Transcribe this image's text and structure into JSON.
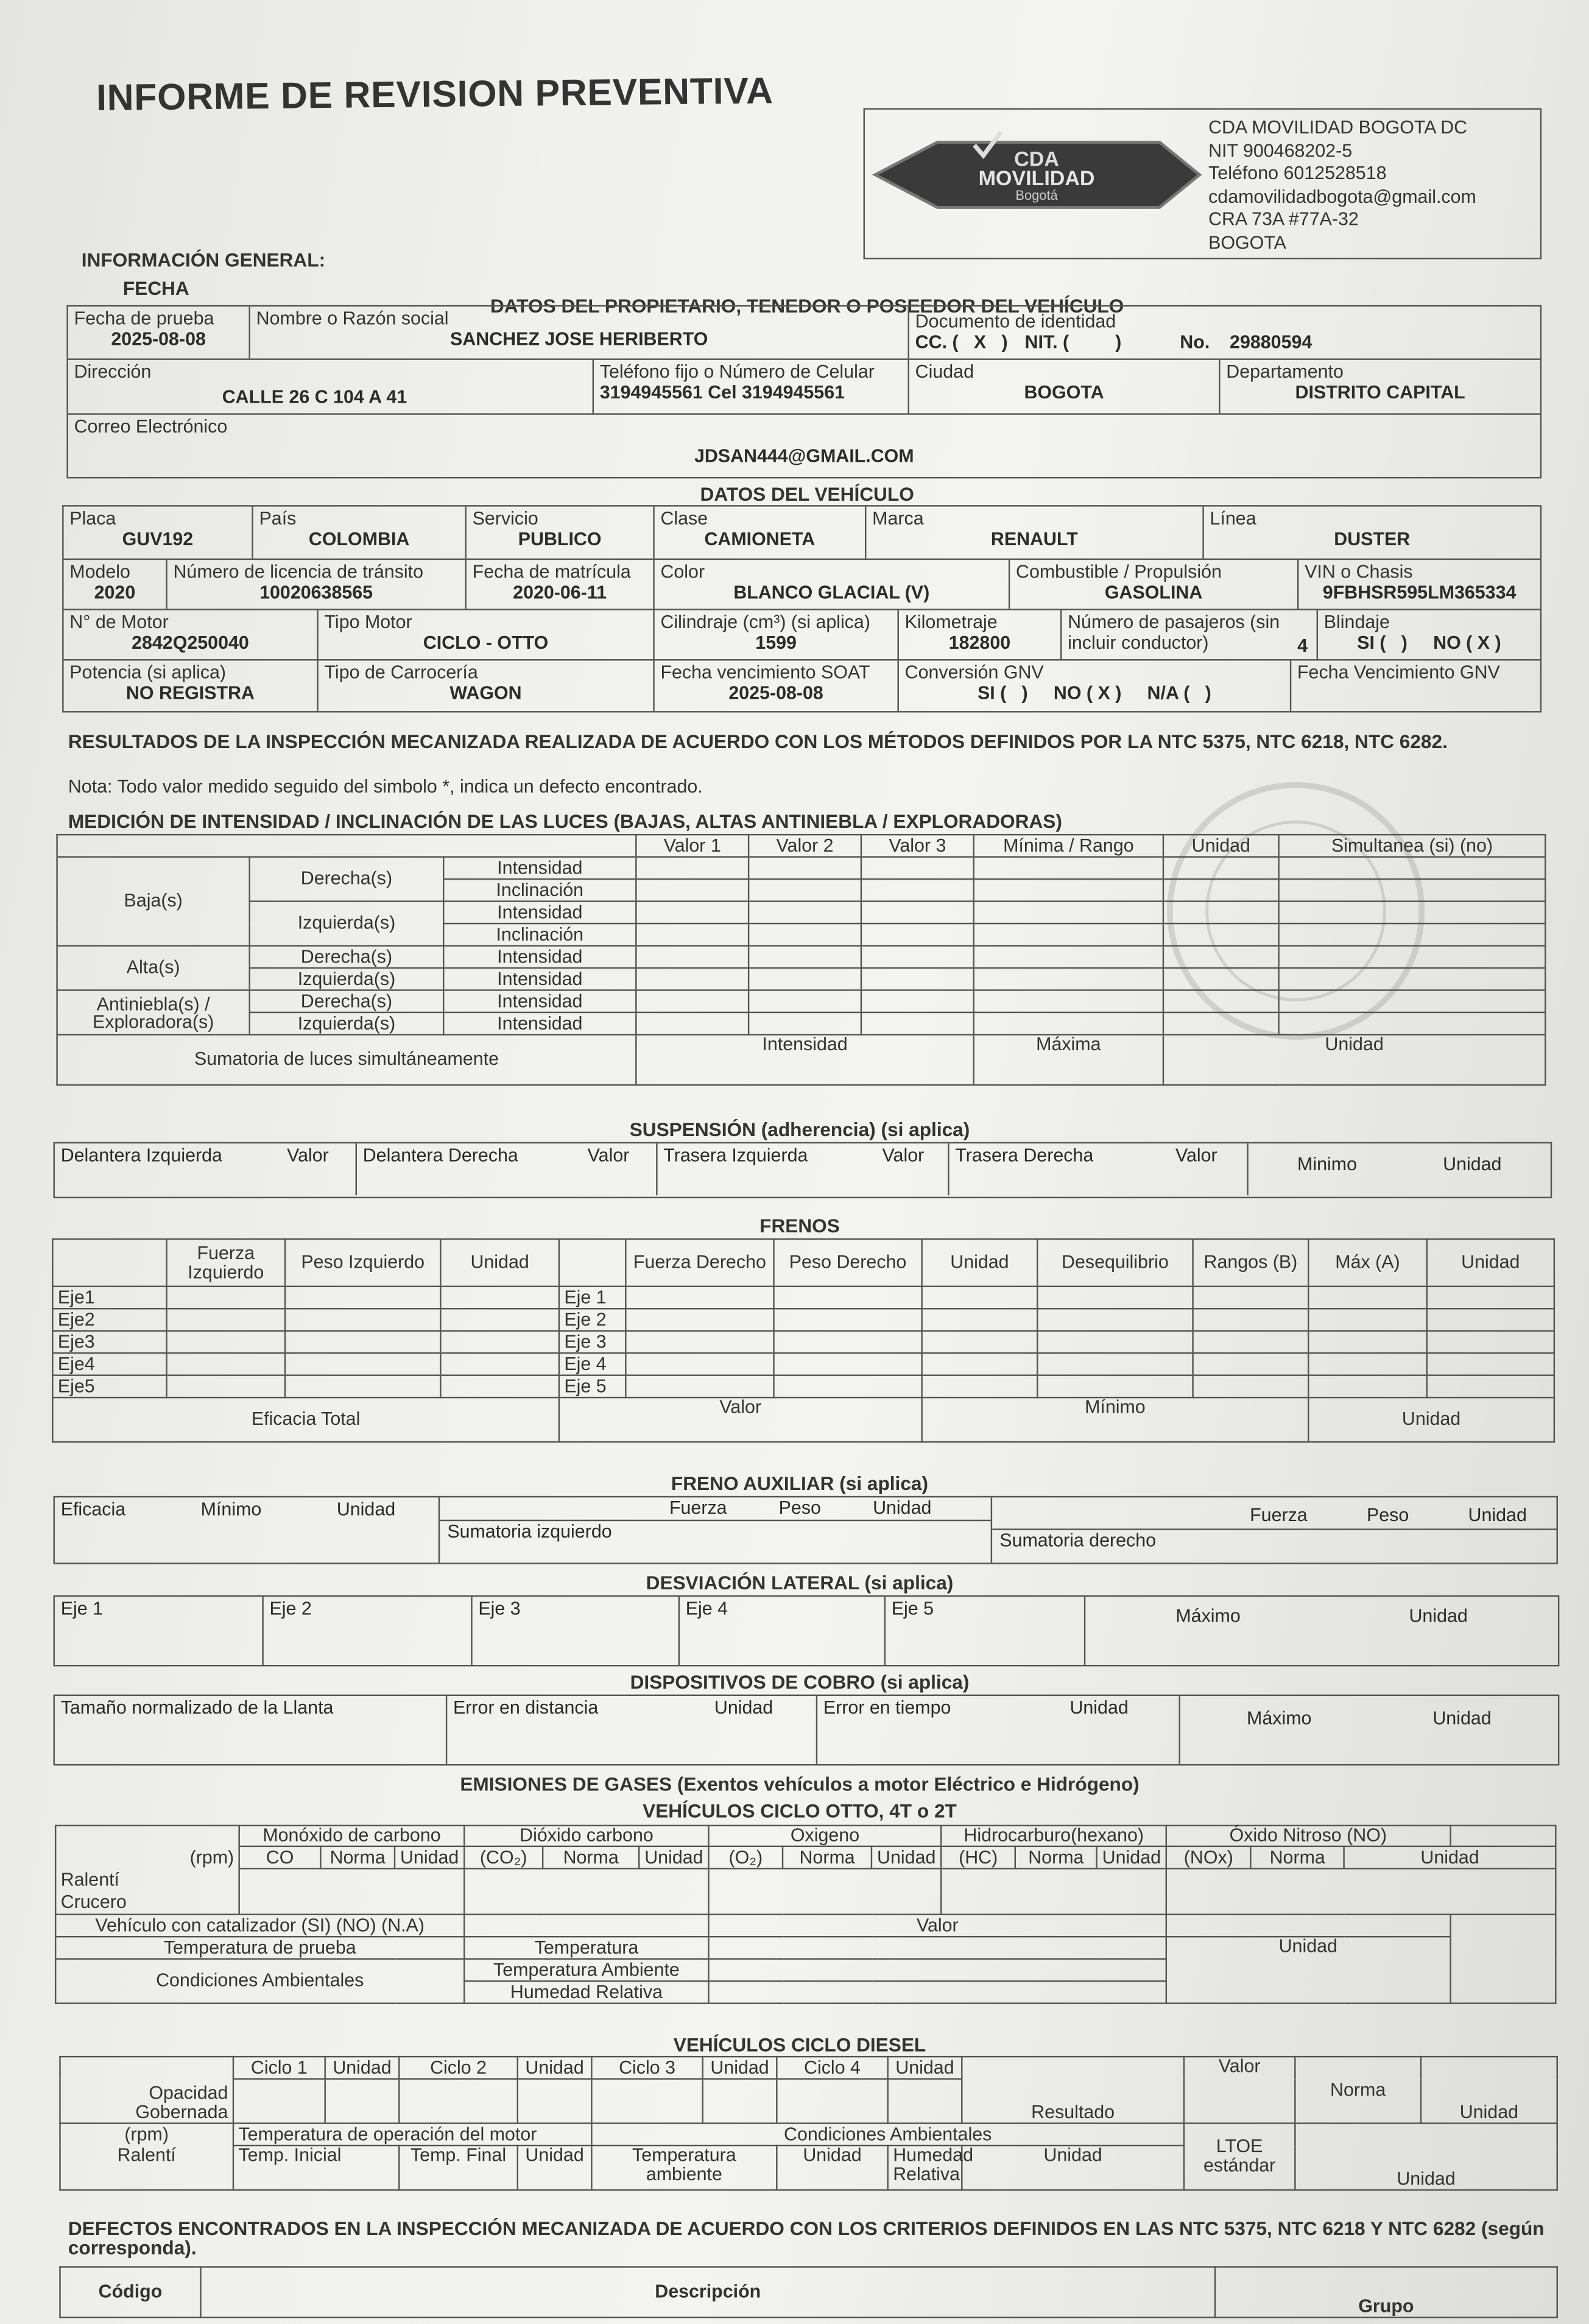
{
  "title": "INFORME DE REVISION PREVENTIVA",
  "company": {
    "logo_text": {
      "top": "CDA",
      "middle": "MOVILIDAD",
      "bottom": "Bogotá"
    },
    "name": "CDA MOVILIDAD BOGOTA DC",
    "nit": "NIT 900468202-5",
    "phone": "Teléfono 6012528518",
    "email": "cdamovilidadbogota@gmail.com",
    "address": "CRA 73A #77A-32",
    "city": "BOGOTA"
  },
  "general": {
    "heading": "INFORMACIÓN GENERAL:",
    "fecha": "FECHA",
    "owner_heading": "DATOS DEL PROPIETARIO, TENEDOR O POSEEDOR DEL VEHÍCULO"
  },
  "owner": {
    "fecha_prueba": {
      "label": "Fecha de prueba",
      "value": "2025-08-08"
    },
    "nombre": {
      "label": "Nombre o Razón social",
      "value": "SANCHEZ JOSE HERIBERTO"
    },
    "documento": {
      "label": "Documento de identidad",
      "cc": "CC. (   X   )",
      "nit": "NIT. (         )",
      "no_label": "No.",
      "no": "29880594"
    },
    "direccion": {
      "label": "Dirección",
      "value": "CALLE 26 C 104 A 41"
    },
    "telefono": {
      "label": "Teléfono fijo o Número de Celular",
      "value": "3194945561  Cel  3194945561"
    },
    "ciudad": {
      "label": "Ciudad",
      "value": "BOGOTA"
    },
    "departamento": {
      "label": "Departamento",
      "value": "DISTRITO CAPITAL"
    },
    "correo": {
      "label": "Correo Electrónico",
      "value": "JDSAN444@GMAIL.COM"
    }
  },
  "vehicle": {
    "heading": "DATOS DEL VEHÍCULO",
    "placa": {
      "label": "Placa",
      "value": "GUV192"
    },
    "pais": {
      "label": "País",
      "value": "COLOMBIA"
    },
    "servicio": {
      "label": "Servicio",
      "value": "PUBLICO"
    },
    "clase": {
      "label": "Clase",
      "value": "CAMIONETA"
    },
    "marca": {
      "label": "Marca",
      "value": "RENAULT"
    },
    "linea": {
      "label": "Línea",
      "value": "DUSTER"
    },
    "modelo": {
      "label": "Modelo",
      "value": "2020"
    },
    "licencia": {
      "label": "Número de licencia de tránsito",
      "value": "10020638565"
    },
    "matricula": {
      "label": "Fecha de matrícula",
      "value": "2020-06-11"
    },
    "color": {
      "label": "Color",
      "value": "BLANCO GLACIAL (V)"
    },
    "combustible": {
      "label": "Combustible / Propulsión",
      "value": "GASOLINA"
    },
    "vin": {
      "label": "VIN o Chasis",
      "value": "9FBHSR595LM365334"
    },
    "motor": {
      "label": "N° de Motor",
      "value": "2842Q250040"
    },
    "tipo_motor": {
      "label": "Tipo Motor",
      "value": "CICLO - OTTO"
    },
    "cilindraje": {
      "label": "Cilindraje (cm³) (si aplica)",
      "value": "1599"
    },
    "kilometraje": {
      "label": "Kilometraje",
      "value": "182800"
    },
    "pasajeros": {
      "label": "Número de pasajeros (sin incluir conductor)",
      "value": "4"
    },
    "blindaje": {
      "label": "Blindaje",
      "value": "SI (   )     NO ( X )"
    },
    "potencia": {
      "label": "Potencia (si aplica)",
      "value": "NO REGISTRA"
    },
    "carroceria": {
      "label": "Tipo de Carrocería",
      "value": "WAGON"
    },
    "soat": {
      "label": "Fecha vencimiento SOAT",
      "value": "2025-08-08"
    },
    "gnv": {
      "label": "Conversión GNV",
      "value": "SI (   )     NO ( X )     N/A (   )"
    },
    "gnv_venc": {
      "label": "Fecha Vencimiento GNV",
      "value": ""
    }
  },
  "results": {
    "heading": "RESULTADOS DE LA INSPECCIÓN MECANIZADA REALIZADA DE ACUERDO CON LOS MÉTODOS DEFINIDOS POR LA NTC 5375, NTC 6218, NTC 6282.",
    "note": "Nota: Todo valor medido seguido del simbolo *, indica un defecto encontrado."
  },
  "lights": {
    "heading": "MEDICIÓN DE INTENSIDAD / INCLINACIÓN DE LAS LUCES (BAJAS, ALTAS ANTINIEBLA / EXPLORADORAS)",
    "columns": [
      "Valor 1",
      "Valor 2",
      "Valor 3",
      "Mínima / Rango",
      "Unidad",
      "Simultanea (si) (no)"
    ],
    "baja": "Baja(s)",
    "alta": "Alta(s)",
    "antiniebla": "Antiniebla(s) / Exploradora(s)",
    "derecha": "Derecha(s)",
    "izquierda": "Izquierda(s)",
    "intensidad": "Intensidad",
    "inclinacion": "Inclinación",
    "sum": "Sumatoria de luces simultáneamente",
    "sum_int": "Intensidad",
    "sum_max": "Máxima",
    "sum_unit": "Unidad"
  },
  "suspension": {
    "heading": "SUSPENSIÓN (adherencia) (si aplica)",
    "cells": [
      "Delantera Izquierda",
      "Valor",
      "Delantera Derecha",
      "Valor",
      "Trasera Izquierda",
      "Valor",
      "Trasera Derecha",
      "Valor",
      "Minimo",
      "Unidad"
    ]
  },
  "brakes": {
    "heading": "FRENOS",
    "left_cols": [
      "Fuerza Izquierdo",
      "Peso Izquierdo",
      "Unidad"
    ],
    "right_cols": [
      "Fuerza Derecho",
      "Peso Derecho",
      "Unidad",
      "Desequilibrio",
      "Rangos (B)",
      "Máx (A)",
      "Unidad"
    ],
    "axles_left": [
      "Eje1",
      "Eje2",
      "Eje3",
      "Eje4",
      "Eje5"
    ],
    "axles_right": [
      "Eje 1",
      "Eje 2",
      "Eje 3",
      "Eje 4",
      "Eje 5"
    ],
    "total": "Eficacia Total",
    "valor": "Valor",
    "minimo": "Mínimo",
    "unidad": "Unidad"
  },
  "aux_brake": {
    "heading": "FRENO AUXILIAR (si aplica)",
    "eficacia": "Eficacia",
    "minimo": "Mínimo",
    "unidad": "Unidad",
    "sum_izq": "Sumatoria izquierdo",
    "sum_der": "Sumatoria derecho",
    "fuerza": "Fuerza",
    "peso": "Peso"
  },
  "lateral": {
    "heading": "DESVIACIÓN LATERAL (si aplica)",
    "axles": [
      "Eje 1",
      "Eje 2",
      "Eje 3",
      "Eje 4",
      "Eje 5"
    ],
    "maximo": "Máximo",
    "unidad": "Unidad"
  },
  "meters": {
    "heading": "DISPOSITIVOS DE COBRO (si aplica)",
    "llanta": "Tamaño normalizado de la Llanta",
    "distancia": "Error en distancia",
    "tiempo": "Error en tiempo",
    "maximo": "Máximo",
    "unidad": "Unidad"
  },
  "emissions": {
    "heading": "EMISIONES DE GASES (Exentos vehículos a motor Eléctrico e Hidrógeno)"
  },
  "otto": {
    "heading": "VEHÍCULOS CICLO OTTO, 4T o 2T",
    "rpm": "(rpm)",
    "ralenti": "Ralentí",
    "crucero": "Crucero",
    "groups": [
      "Monóxido de carbono",
      "Dióxido carbono",
      "Oxigeno",
      "Hidrocarburo(hexano)",
      "Óxido Nitroso (NO)"
    ],
    "gases": [
      "CO",
      "(CO₂)",
      "(O₂)",
      "(HC)",
      "(NOx)"
    ],
    "norma": "Norma",
    "unidad": "Unidad",
    "catalizador": "Vehículo con catalizador (SI) (NO) (N.A)",
    "valor": "Valor",
    "temp_prueba": "Temperatura de prueba",
    "temperatura": "Temperatura",
    "condiciones": "Condiciones Ambientales",
    "temp_amb": "Temperatura Ambiente",
    "humedad": "Humedad Relativa"
  },
  "diesel": {
    "heading": "VEHÍCULOS CICLO DIESEL",
    "opacidad": "Opacidad Gobernada",
    "rpm": "(rpm)",
    "ralenti": "Ralentí",
    "ciclos": [
      "Ciclo 1",
      "Ciclo 2",
      "Ciclo 3",
      "Ciclo 4"
    ],
    "unidad": "Unidad",
    "resultado": "Resultado",
    "valor": "Valor",
    "norma": "Norma",
    "temp_op": "Temperatura de operación del motor",
    "condiciones": "Condiciones Ambientales",
    "temp_ini": "Temp. Inicial",
    "temp_fin": "Temp. Final",
    "temp_amb": "Temperatura ambiente",
    "humedad": "Humedad Relativa",
    "ltoe": "LTOE estándar"
  },
  "defects": {
    "heading": "DEFECTOS ENCONTRADOS EN LA INSPECCIÓN MECANIZADA DE ACUERDO CON LOS CRITERIOS DEFINIDOS EN LAS NTC 5375, NTC 6218 Y NTC 6282 (según corresponda).",
    "codigo": "Código",
    "descripcion": "Descripción",
    "grupo": "Grupo"
  }
}
